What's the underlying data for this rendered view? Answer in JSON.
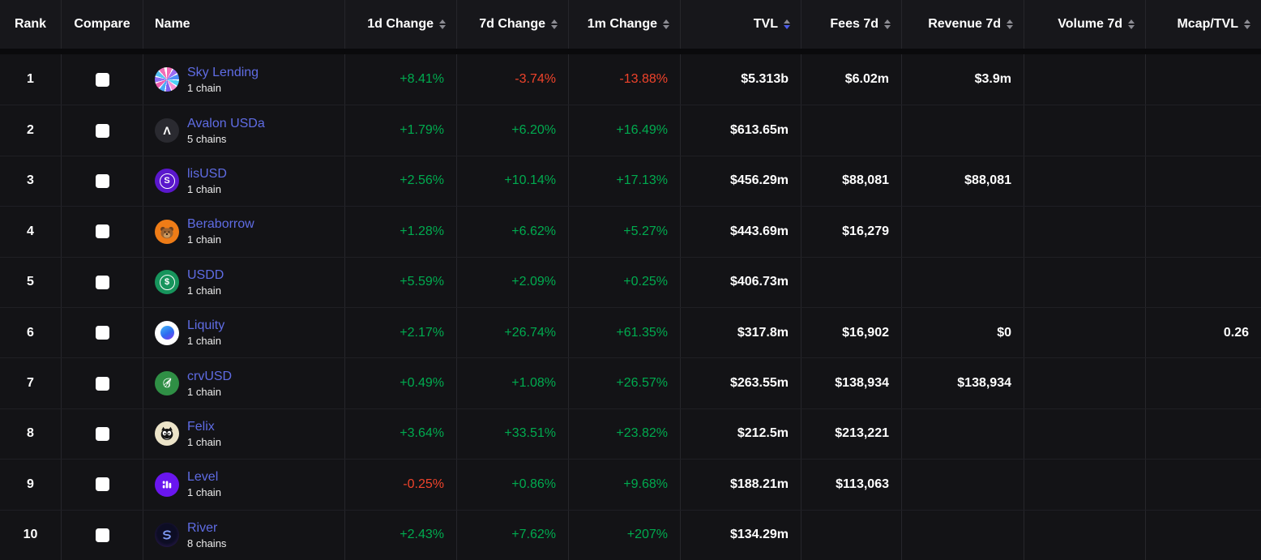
{
  "colors": {
    "link": "#5f6ce4",
    "positive": "#00ab4f",
    "negative": "#f0432b",
    "sort-active": "#4c5be8"
  },
  "table": {
    "sorted_by": "TVL",
    "sort_direction": "desc",
    "columns": [
      {
        "key": "rank",
        "label": "Rank",
        "sortable": false
      },
      {
        "key": "compare",
        "label": "Compare",
        "sortable": false
      },
      {
        "key": "name",
        "label": "Name",
        "sortable": false
      },
      {
        "key": "change_1d",
        "label": "1d Change",
        "sortable": true
      },
      {
        "key": "change_7d",
        "label": "7d Change",
        "sortable": true
      },
      {
        "key": "change_1m",
        "label": "1m Change",
        "sortable": true
      },
      {
        "key": "tvl",
        "label": "TVL",
        "sortable": true,
        "sorted": "desc"
      },
      {
        "key": "fees_7d",
        "label": "Fees 7d",
        "sortable": true
      },
      {
        "key": "revenue_7d",
        "label": "Revenue 7d",
        "sortable": true
      },
      {
        "key": "volume_7d",
        "label": "Volume 7d",
        "sortable": true
      },
      {
        "key": "mcap_tvl",
        "label": "Mcap/TVL",
        "sortable": true
      }
    ],
    "rows": [
      {
        "rank": "1",
        "icon": "sky-lending-icon",
        "name": "Sky Lending",
        "chains": "1 chain",
        "change_1d": "+8.41%",
        "change_7d": "-3.74%",
        "change_1m": "-13.88%",
        "tvl": "$5.313b",
        "fees_7d": "$6.02m",
        "revenue_7d": "$3.9m",
        "volume_7d": "",
        "mcap_tvl": ""
      },
      {
        "rank": "2",
        "icon": "avalon-usda-icon",
        "name": "Avalon USDa",
        "chains": "5 chains",
        "change_1d": "+1.79%",
        "change_7d": "+6.20%",
        "change_1m": "+16.49%",
        "tvl": "$613.65m",
        "fees_7d": "",
        "revenue_7d": "",
        "volume_7d": "",
        "mcap_tvl": ""
      },
      {
        "rank": "3",
        "icon": "lisusd-icon",
        "name": "lisUSD",
        "chains": "1 chain",
        "change_1d": "+2.56%",
        "change_7d": "+10.14%",
        "change_1m": "+17.13%",
        "tvl": "$456.29m",
        "fees_7d": "$88,081",
        "revenue_7d": "$88,081",
        "volume_7d": "",
        "mcap_tvl": ""
      },
      {
        "rank": "4",
        "icon": "beraborrow-icon",
        "name": "Beraborrow",
        "chains": "1 chain",
        "change_1d": "+1.28%",
        "change_7d": "+6.62%",
        "change_1m": "+5.27%",
        "tvl": "$443.69m",
        "fees_7d": "$16,279",
        "revenue_7d": "",
        "volume_7d": "",
        "mcap_tvl": ""
      },
      {
        "rank": "5",
        "icon": "usdd-icon",
        "name": "USDD",
        "chains": "1 chain",
        "change_1d": "+5.59%",
        "change_7d": "+2.09%",
        "change_1m": "+0.25%",
        "tvl": "$406.73m",
        "fees_7d": "",
        "revenue_7d": "",
        "volume_7d": "",
        "mcap_tvl": ""
      },
      {
        "rank": "6",
        "icon": "liquity-icon",
        "name": "Liquity",
        "chains": "1 chain",
        "change_1d": "+2.17%",
        "change_7d": "+26.74%",
        "change_1m": "+61.35%",
        "tvl": "$317.8m",
        "fees_7d": "$16,902",
        "revenue_7d": "$0",
        "volume_7d": "",
        "mcap_tvl": "0.26"
      },
      {
        "rank": "7",
        "icon": "crvusd-icon",
        "name": "crvUSD",
        "chains": "1 chain",
        "change_1d": "+0.49%",
        "change_7d": "+1.08%",
        "change_1m": "+26.57%",
        "tvl": "$263.55m",
        "fees_7d": "$138,934",
        "revenue_7d": "$138,934",
        "volume_7d": "",
        "mcap_tvl": ""
      },
      {
        "rank": "8",
        "icon": "felix-icon",
        "name": "Felix",
        "chains": "1 chain",
        "change_1d": "+3.64%",
        "change_7d": "+33.51%",
        "change_1m": "+23.82%",
        "tvl": "$212.5m",
        "fees_7d": "$213,221",
        "revenue_7d": "",
        "volume_7d": "",
        "mcap_tvl": ""
      },
      {
        "rank": "9",
        "icon": "level-icon",
        "name": "Level",
        "chains": "1 chain",
        "change_1d": "-0.25%",
        "change_7d": "+0.86%",
        "change_1m": "+9.68%",
        "tvl": "$188.21m",
        "fees_7d": "$113,063",
        "revenue_7d": "",
        "volume_7d": "",
        "mcap_tvl": ""
      },
      {
        "rank": "10",
        "icon": "river-icon",
        "name": "River",
        "chains": "8 chains",
        "change_1d": "+2.43%",
        "change_7d": "+7.62%",
        "change_1m": "+207%",
        "tvl": "$134.29m",
        "fees_7d": "",
        "revenue_7d": "",
        "volume_7d": "",
        "mcap_tvl": ""
      }
    ]
  }
}
